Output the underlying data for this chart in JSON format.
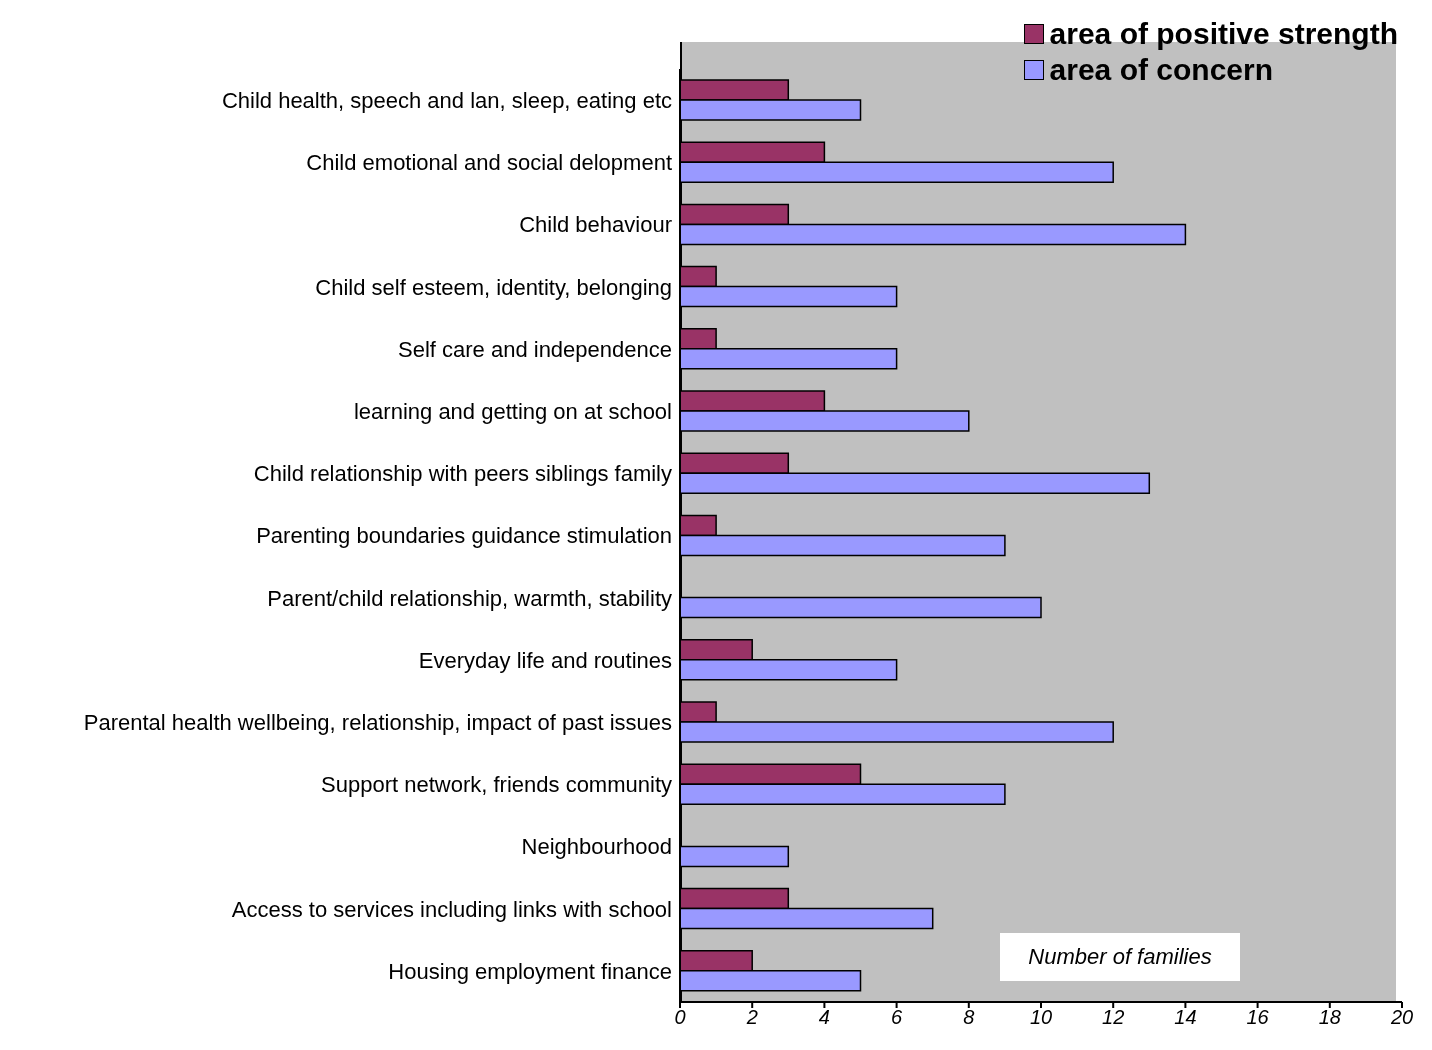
{
  "chart_data": {
    "type": "bar",
    "orientation": "horizontal",
    "xlabel": "Number of families",
    "categories": [
      "Child health, speech and lan, sleep, eating etc",
      "Child emotional and social delopment",
      "Child behaviour",
      "Child self esteem, identity, belonging",
      "Self care and independence",
      "learning and getting on at school",
      "Child relationship with peers siblings family",
      "Parenting boundaries guidance stimulation",
      "Parent/child relationship, warmth, stability",
      "Everyday life and routines",
      "Parental health wellbeing, relationship, impact of past issues",
      "Support network, friends community",
      "Neighbourhood",
      "Access to services including links with school ",
      "Housing employment finance"
    ],
    "series": [
      {
        "name": "area of positive strength",
        "color": "#993366",
        "values": [
          3,
          4,
          3,
          1,
          1,
          4,
          3,
          1,
          null,
          2,
          1,
          5,
          null,
          3,
          2
        ]
      },
      {
        "name": "area of concern",
        "color": "#9999ff",
        "values": [
          5,
          12,
          14,
          6,
          6,
          8,
          13,
          9,
          10,
          6,
          12,
          9,
          3,
          7,
          5
        ]
      }
    ],
    "xlim": [
      0,
      20
    ],
    "xticks": [
      0,
      2,
      4,
      6,
      8,
      10,
      12,
      14,
      16,
      18,
      20
    ],
    "legend": "top right"
  }
}
